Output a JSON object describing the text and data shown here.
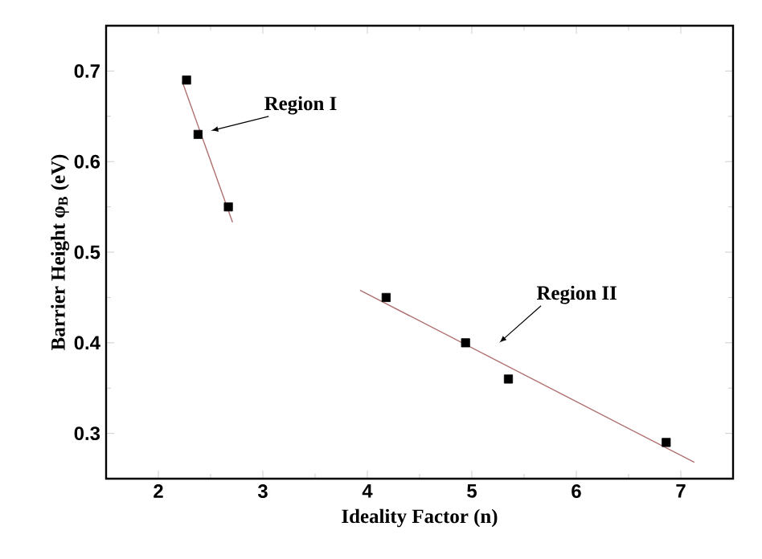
{
  "chart_data": {
    "type": "scatter",
    "xlabel": "Ideality Factor (n)",
    "ylabel": "Barrier Height φ$_{B}$ (eV)",
    "xlim": [
      1.5,
      7.5
    ],
    "ylim": [
      0.25,
      0.75
    ],
    "xticks": [
      2,
      3,
      4,
      5,
      6,
      7
    ],
    "yticks": [
      0.3,
      0.4,
      0.5,
      0.6,
      0.7
    ],
    "grid": false,
    "series": [
      {
        "marker": "square",
        "color": "#000000",
        "x": [
          2.27,
          2.38,
          2.67,
          4.18,
          4.94,
          5.35,
          6.86
        ],
        "values": [
          0.69,
          0.63,
          0.55,
          0.45,
          0.4,
          0.36,
          0.29
        ]
      },
      {
        "type": "line",
        "color": "#b07070",
        "x": [
          2.23,
          2.71
        ],
        "values": [
          0.688,
          0.533
        ]
      },
      {
        "type": "line",
        "color": "#b07070",
        "x": [
          3.93,
          7.13
        ],
        "values": [
          0.458,
          0.268
        ]
      }
    ],
    "annotations": [
      "Region I",
      "Region II"
    ]
  }
}
